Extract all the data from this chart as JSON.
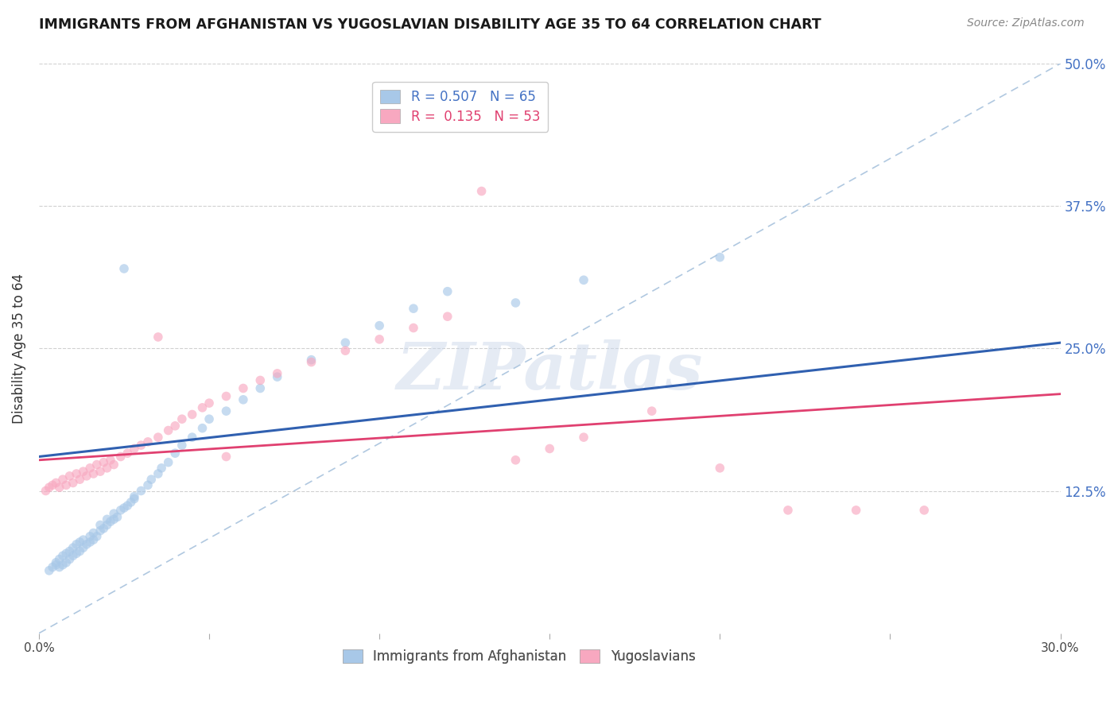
{
  "title": "IMMIGRANTS FROM AFGHANISTAN VS YUGOSLAVIAN DISABILITY AGE 35 TO 64 CORRELATION CHART",
  "source": "Source: ZipAtlas.com",
  "ylabel": "Disability Age 35 to 64",
  "xlim": [
    0.0,
    0.3
  ],
  "ylim": [
    0.0,
    0.5
  ],
  "xtick_positions": [
    0.0,
    0.05,
    0.1,
    0.15,
    0.2,
    0.25,
    0.3
  ],
  "xtick_labels": [
    "0.0%",
    "",
    "",
    "",
    "",
    "",
    "30.0%"
  ],
  "ytick_positions": [
    0.125,
    0.25,
    0.375,
    0.5
  ],
  "ytick_labels_right": [
    "12.5%",
    "25.0%",
    "37.5%",
    "50.0%"
  ],
  "legend_labels_bottom": [
    "Immigrants from Afghanistan",
    "Yugoslavians"
  ],
  "watermark": "ZIPatlas",
  "blue_R": "0.507",
  "blue_N": "65",
  "pink_R": "0.135",
  "pink_N": "53",
  "blue_scatter_x": [
    0.003,
    0.004,
    0.005,
    0.005,
    0.006,
    0.006,
    0.007,
    0.007,
    0.008,
    0.008,
    0.009,
    0.009,
    0.01,
    0.01,
    0.011,
    0.011,
    0.012,
    0.012,
    0.013,
    0.013,
    0.014,
    0.015,
    0.015,
    0.016,
    0.016,
    0.017,
    0.018,
    0.018,
    0.019,
    0.02,
    0.02,
    0.021,
    0.022,
    0.022,
    0.023,
    0.024,
    0.025,
    0.026,
    0.027,
    0.028,
    0.028,
    0.03,
    0.032,
    0.033,
    0.035,
    0.036,
    0.038,
    0.04,
    0.042,
    0.045,
    0.048,
    0.05,
    0.055,
    0.06,
    0.065,
    0.07,
    0.08,
    0.09,
    0.1,
    0.11,
    0.12,
    0.14,
    0.16,
    0.2,
    0.025
  ],
  "blue_scatter_y": [
    0.055,
    0.058,
    0.06,
    0.062,
    0.058,
    0.065,
    0.06,
    0.068,
    0.062,
    0.07,
    0.065,
    0.072,
    0.068,
    0.075,
    0.07,
    0.078,
    0.072,
    0.08,
    0.075,
    0.082,
    0.078,
    0.08,
    0.085,
    0.082,
    0.088,
    0.085,
    0.09,
    0.095,
    0.092,
    0.095,
    0.1,
    0.098,
    0.1,
    0.105,
    0.102,
    0.108,
    0.11,
    0.112,
    0.115,
    0.118,
    0.12,
    0.125,
    0.13,
    0.135,
    0.14,
    0.145,
    0.15,
    0.158,
    0.165,
    0.172,
    0.18,
    0.188,
    0.195,
    0.205,
    0.215,
    0.225,
    0.24,
    0.255,
    0.27,
    0.285,
    0.3,
    0.29,
    0.31,
    0.33,
    0.32
  ],
  "pink_scatter_x": [
    0.002,
    0.003,
    0.004,
    0.005,
    0.006,
    0.007,
    0.008,
    0.009,
    0.01,
    0.011,
    0.012,
    0.013,
    0.014,
    0.015,
    0.016,
    0.017,
    0.018,
    0.019,
    0.02,
    0.021,
    0.022,
    0.024,
    0.026,
    0.028,
    0.03,
    0.032,
    0.035,
    0.038,
    0.04,
    0.042,
    0.045,
    0.048,
    0.05,
    0.055,
    0.06,
    0.065,
    0.07,
    0.08,
    0.09,
    0.1,
    0.11,
    0.12,
    0.13,
    0.14,
    0.15,
    0.16,
    0.18,
    0.2,
    0.22,
    0.24,
    0.26,
    0.055,
    0.035
  ],
  "pink_scatter_y": [
    0.125,
    0.128,
    0.13,
    0.132,
    0.128,
    0.135,
    0.13,
    0.138,
    0.132,
    0.14,
    0.135,
    0.142,
    0.138,
    0.145,
    0.14,
    0.148,
    0.142,
    0.15,
    0.145,
    0.152,
    0.148,
    0.155,
    0.158,
    0.162,
    0.165,
    0.168,
    0.172,
    0.178,
    0.182,
    0.188,
    0.192,
    0.198,
    0.202,
    0.208,
    0.215,
    0.222,
    0.228,
    0.238,
    0.248,
    0.258,
    0.268,
    0.278,
    0.388,
    0.152,
    0.162,
    0.172,
    0.195,
    0.145,
    0.108,
    0.108,
    0.108,
    0.155,
    0.26
  ],
  "blue_line_y_start": 0.155,
  "blue_line_y_end": 0.255,
  "pink_line_y_start": 0.152,
  "pink_line_y_end": 0.21,
  "diag_line_y": [
    0.0,
    0.5
  ],
  "bg_color": "#ffffff",
  "grid_color": "#d0d0d0",
  "blue_color": "#a8c8e8",
  "pink_color": "#f8a8c0",
  "blue_line_color": "#3060b0",
  "pink_line_color": "#e04070",
  "diag_line_color": "#b0c8e0"
}
